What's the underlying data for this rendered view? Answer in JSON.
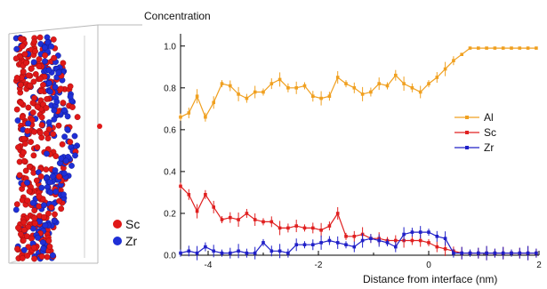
{
  "atom_panel": {
    "legend": [
      {
        "label": "Sc",
        "color": "#e01818"
      },
      {
        "label": "Zr",
        "color": "#1f2fd6"
      }
    ]
  },
  "chart_data": {
    "type": "line",
    "title": "",
    "ylabel": "Concentration",
    "xlabel": "Distance from interface (nm)",
    "xlim": [
      -4.5,
      2
    ],
    "ylim": [
      0,
      1.05
    ],
    "xticks": [
      -4,
      -2,
      0,
      2
    ],
    "yticks": [
      0.0,
      0.2,
      0.4,
      0.6,
      0.8,
      1.0
    ],
    "xtick_labels": [
      "-4",
      "-2",
      "0",
      "2"
    ],
    "ytick_labels": [
      "0.0",
      "0.2",
      "0.4",
      "0.6",
      "0.8",
      "1.0"
    ],
    "grid": false,
    "legend_position": "right",
    "x": [
      -4.5,
      -4.35,
      -4.2,
      -4.05,
      -3.9,
      -3.75,
      -3.6,
      -3.45,
      -3.3,
      -3.15,
      -3.0,
      -2.85,
      -2.7,
      -2.55,
      -2.4,
      -2.25,
      -2.1,
      -1.95,
      -1.8,
      -1.65,
      -1.5,
      -1.35,
      -1.2,
      -1.05,
      -0.9,
      -0.75,
      -0.6,
      -0.45,
      -0.3,
      -0.15,
      0.0,
      0.15,
      0.3,
      0.45,
      0.6,
      0.75,
      0.9,
      1.05,
      1.2,
      1.35,
      1.5,
      1.65,
      1.8,
      1.95
    ],
    "series": [
      {
        "name": "Al",
        "color": "#f0a020",
        "values": [
          0.66,
          0.68,
          0.76,
          0.66,
          0.73,
          0.82,
          0.81,
          0.77,
          0.75,
          0.78,
          0.78,
          0.82,
          0.84,
          0.8,
          0.8,
          0.81,
          0.76,
          0.75,
          0.76,
          0.85,
          0.82,
          0.8,
          0.77,
          0.78,
          0.82,
          0.81,
          0.86,
          0.82,
          0.8,
          0.78,
          0.82,
          0.85,
          0.89,
          0.93,
          0.96,
          0.99,
          0.99,
          0.99,
          0.99,
          0.99,
          0.99,
          0.99,
          0.99,
          0.99
        ]
      },
      {
        "name": "Sc",
        "color": "#e02020",
        "values": [
          0.33,
          0.29,
          0.21,
          0.29,
          0.23,
          0.17,
          0.18,
          0.17,
          0.2,
          0.17,
          0.16,
          0.16,
          0.13,
          0.13,
          0.14,
          0.13,
          0.13,
          0.12,
          0.14,
          0.2,
          0.09,
          0.09,
          0.1,
          0.08,
          0.08,
          0.07,
          0.07,
          0.07,
          0.07,
          0.07,
          0.06,
          0.04,
          0.03,
          0.02,
          0.01,
          0.01,
          0.01,
          0.01,
          0.01,
          0.01,
          0.01,
          0.01,
          0.01,
          0.01
        ]
      },
      {
        "name": "Zr",
        "color": "#2020c8",
        "values": [
          0.01,
          0.02,
          0.01,
          0.04,
          0.02,
          0.01,
          0.01,
          0.02,
          0.01,
          0.01,
          0.06,
          0.02,
          0.02,
          0.01,
          0.05,
          0.05,
          0.05,
          0.06,
          0.07,
          0.06,
          0.05,
          0.04,
          0.07,
          0.08,
          0.07,
          0.06,
          0.04,
          0.1,
          0.11,
          0.11,
          0.11,
          0.09,
          0.08,
          0.01,
          0.01,
          0.01,
          0.01,
          0.01,
          0.01,
          0.01,
          0.01,
          0.01,
          0.01,
          0.01
        ]
      }
    ]
  }
}
